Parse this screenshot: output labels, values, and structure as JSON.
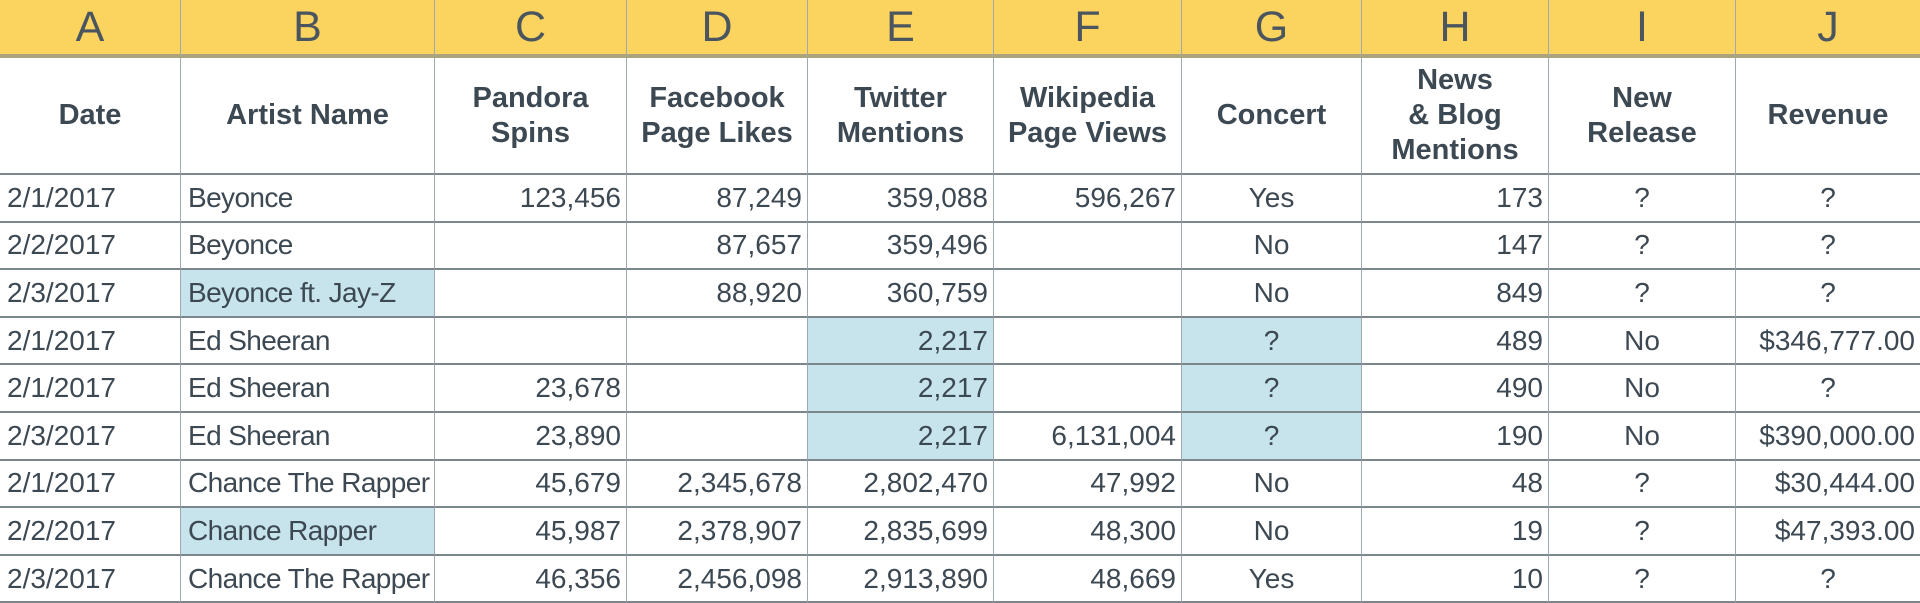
{
  "sheet": {
    "column_letters": [
      "A",
      "B",
      "C",
      "D",
      "E",
      "F",
      "G",
      "H",
      "I",
      "J"
    ],
    "headers": [
      {
        "label": "Date",
        "lines": [
          "Date"
        ]
      },
      {
        "label": "Artist Name",
        "lines": [
          "Artist Name"
        ]
      },
      {
        "label": "Pandora Spins",
        "lines": [
          "Pandora",
          "Spins"
        ]
      },
      {
        "label": "Facebook Page Likes",
        "lines": [
          "Facebook",
          "Page Likes"
        ]
      },
      {
        "label": "Twitter Mentions",
        "lines": [
          "Twitter",
          "Mentions"
        ]
      },
      {
        "label": "Wikipedia Page Views",
        "lines": [
          "Wikipedia",
          "Page Views"
        ]
      },
      {
        "label": "Concert",
        "lines": [
          "Concert"
        ]
      },
      {
        "label": "News & Blog Mentions",
        "lines": [
          "News",
          "& Blog",
          "Mentions"
        ]
      },
      {
        "label": "New Release",
        "lines": [
          "New",
          "Release"
        ]
      },
      {
        "label": "Revenue",
        "lines": [
          "Revenue"
        ]
      }
    ],
    "rows": [
      {
        "cells": [
          {
            "v": "2/1/2017"
          },
          {
            "v": "Beyonce"
          },
          {
            "v": "123,456"
          },
          {
            "v": "87,249"
          },
          {
            "v": "359,088"
          },
          {
            "v": "596,267"
          },
          {
            "v": "Yes"
          },
          {
            "v": "173"
          },
          {
            "v": "?"
          },
          {
            "v": "?"
          }
        ]
      },
      {
        "cells": [
          {
            "v": "2/2/2017"
          },
          {
            "v": "Beyonce"
          },
          {
            "v": ""
          },
          {
            "v": "87,657"
          },
          {
            "v": "359,496"
          },
          {
            "v": ""
          },
          {
            "v": "No"
          },
          {
            "v": "147"
          },
          {
            "v": "?"
          },
          {
            "v": "?"
          }
        ]
      },
      {
        "cells": [
          {
            "v": "2/3/2017"
          },
          {
            "v": "Beyonce ft. Jay-Z",
            "hl": true
          },
          {
            "v": ""
          },
          {
            "v": "88,920"
          },
          {
            "v": "360,759"
          },
          {
            "v": ""
          },
          {
            "v": "No"
          },
          {
            "v": "849"
          },
          {
            "v": "?"
          },
          {
            "v": "?"
          }
        ]
      },
      {
        "cells": [
          {
            "v": "2/1/2017"
          },
          {
            "v": "Ed Sheeran"
          },
          {
            "v": ""
          },
          {
            "v": ""
          },
          {
            "v": "2,217",
            "hl": true
          },
          {
            "v": ""
          },
          {
            "v": "?",
            "hl": true
          },
          {
            "v": "489"
          },
          {
            "v": "No"
          },
          {
            "v": "$346,777.00"
          }
        ]
      },
      {
        "cells": [
          {
            "v": "2/1/2017"
          },
          {
            "v": "Ed Sheeran"
          },
          {
            "v": "23,678"
          },
          {
            "v": ""
          },
          {
            "v": "2,217",
            "hl": true
          },
          {
            "v": ""
          },
          {
            "v": "?",
            "hl": true
          },
          {
            "v": "490"
          },
          {
            "v": "No"
          },
          {
            "v": "?"
          }
        ]
      },
      {
        "cells": [
          {
            "v": "2/3/2017"
          },
          {
            "v": "Ed Sheeran"
          },
          {
            "v": "23,890"
          },
          {
            "v": ""
          },
          {
            "v": "2,217",
            "hl": true
          },
          {
            "v": "6,131,004"
          },
          {
            "v": "?",
            "hl": true
          },
          {
            "v": "190"
          },
          {
            "v": "No"
          },
          {
            "v": "$390,000.00"
          }
        ]
      },
      {
        "cells": [
          {
            "v": "2/1/2017"
          },
          {
            "v": "Chance The Rapper"
          },
          {
            "v": "45,679"
          },
          {
            "v": "2,345,678"
          },
          {
            "v": "2,802,470"
          },
          {
            "v": "47,992"
          },
          {
            "v": "No"
          },
          {
            "v": "48"
          },
          {
            "v": "?"
          },
          {
            "v": "$30,444.00"
          }
        ]
      },
      {
        "cells": [
          {
            "v": "2/2/2017"
          },
          {
            "v": "Chance Rapper",
            "hl": true
          },
          {
            "v": "45,987"
          },
          {
            "v": "2,378,907"
          },
          {
            "v": "2,835,699"
          },
          {
            "v": "48,300"
          },
          {
            "v": "No"
          },
          {
            "v": "19"
          },
          {
            "v": "?"
          },
          {
            "v": "$47,393.00"
          }
        ]
      },
      {
        "cells": [
          {
            "v": "2/3/2017"
          },
          {
            "v": "Chance The Rapper"
          },
          {
            "v": "46,356"
          },
          {
            "v": "2,456,098"
          },
          {
            "v": "2,913,890"
          },
          {
            "v": "48,669"
          },
          {
            "v": "Yes"
          },
          {
            "v": "10"
          },
          {
            "v": "?"
          },
          {
            "v": "?"
          }
        ]
      }
    ]
  },
  "colors": {
    "column_header_bg": "#fbd45f",
    "column_header_border": "#aba37b",
    "highlight_cell_bg": "#c7e4ec",
    "gridline_horizontal": "#7b868d",
    "gridline_vertical": "#a0a9b0",
    "text": "#3c4852"
  }
}
